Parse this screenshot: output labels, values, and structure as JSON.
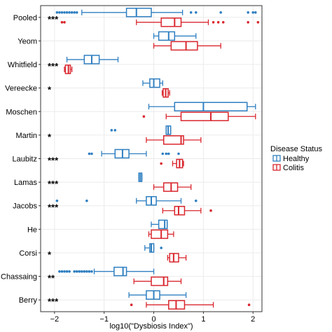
{
  "chart_data": {
    "type": "boxplot",
    "title": "",
    "xlabel": "log10(\"Dysbiosis Index\")",
    "ylabel": "",
    "xlim": [
      -2.28,
      2.18
    ],
    "xticks": [
      -2,
      -1,
      0,
      1,
      2
    ],
    "grid": true,
    "legend": {
      "title": "Disease Status",
      "placement": "right",
      "entries": [
        {
          "name": "Healthy",
          "color": "#2f7fc1"
        },
        {
          "name": "Colitis",
          "color": "#d9272e"
        }
      ]
    },
    "colors": {
      "Healthy": "#2f7fc1",
      "Colitis": "#d9272e",
      "panel_border": "#333333",
      "grid": "#ebebeb"
    },
    "categories": [
      "Pooled",
      "Yeom",
      "Whitfield",
      "Vereecke",
      "Moschen",
      "Martin",
      "Laubitz",
      "Lamas",
      "Jacobs",
      "He",
      "Corsi",
      "Chassaing",
      "Berry"
    ],
    "significance": [
      "***",
      "",
      "***",
      "*",
      "",
      "*",
      "***",
      "***",
      "***",
      "",
      "*",
      "**",
      "***"
    ],
    "series": [
      {
        "name": "Healthy",
        "boxes": [
          {
            "whislo": -1.45,
            "q1": -0.55,
            "med": -0.35,
            "q3": -0.05,
            "whishi": 0.58,
            "fliers": [
              -1.95,
              -1.9,
              -1.85,
              -1.8,
              -1.75,
              -1.7,
              -1.65,
              -1.6,
              -1.55,
              0.75,
              0.85,
              1.35,
              1.9,
              2.0,
              2.05
            ]
          },
          {
            "whislo": 0.0,
            "q1": 0.1,
            "med": 0.3,
            "q3": 0.42,
            "whishi": 0.85,
            "fliers": []
          },
          {
            "whislo": -1.75,
            "q1": -1.4,
            "med": -1.25,
            "q3": -1.1,
            "whishi": -0.72,
            "fliers": []
          },
          {
            "whislo": -0.22,
            "q1": -0.08,
            "med": 0.0,
            "q3": 0.12,
            "whishi": 0.18,
            "fliers": []
          },
          {
            "whislo": -0.1,
            "q1": 0.42,
            "med": 1.0,
            "q3": 1.88,
            "whishi": 2.05,
            "fliers": []
          },
          {
            "whislo": 0.25,
            "q1": 0.25,
            "med": 0.29,
            "q3": 0.34,
            "whishi": 0.34,
            "fliers": [
              -0.85,
              -0.78
            ]
          },
          {
            "whislo": -1.05,
            "q1": -0.78,
            "med": -0.63,
            "q3": -0.5,
            "whishi": -0.15,
            "fliers": [
              -1.3,
              -1.25,
              0.18,
              0.25,
              0.3,
              0.5
            ]
          },
          {
            "whislo": -0.3,
            "q1": -0.3,
            "med": -0.27,
            "q3": -0.24,
            "whishi": -0.24,
            "fliers": []
          },
          {
            "whislo": -0.35,
            "q1": -0.15,
            "med": -0.05,
            "q3": 0.05,
            "whishi": 0.55,
            "fliers": [
              -1.95,
              -1.35,
              0.85
            ]
          },
          {
            "whislo": -0.05,
            "q1": 0.1,
            "med": 0.22,
            "q3": 0.27,
            "whishi": 0.27,
            "fliers": []
          },
          {
            "whislo": -0.18,
            "q1": -0.08,
            "med": -0.05,
            "q3": 0.0,
            "whishi": 0.0,
            "fliers": [
              0.15
            ]
          },
          {
            "whislo": -1.2,
            "q1": -0.8,
            "med": -0.62,
            "q3": -0.55,
            "whishi": 0.0,
            "fliers": [
              -1.9,
              -1.85,
              -1.8,
              -1.75,
              -1.7,
              -1.6,
              -1.55,
              -1.5,
              -1.45,
              -1.4,
              -1.35,
              -1.3,
              -1.25
            ]
          },
          {
            "whislo": -0.5,
            "q1": -0.15,
            "med": 0.0,
            "q3": 0.12,
            "whishi": 0.65,
            "fliers": []
          }
        ]
      },
      {
        "name": "Colitis",
        "boxes": [
          {
            "whislo": -0.35,
            "q1": 0.15,
            "med": 0.42,
            "q3": 0.55,
            "whishi": 1.1,
            "fliers": [
              -1.85,
              -1.8,
              1.2,
              1.3,
              1.4,
              1.9,
              2.1
            ]
          },
          {
            "whislo": 0.0,
            "q1": 0.35,
            "med": 0.65,
            "q3": 0.88,
            "whishi": 1.35,
            "fliers": []
          },
          {
            "whislo": -1.8,
            "q1": -1.78,
            "med": -1.72,
            "q3": -1.68,
            "whishi": -1.65,
            "fliers": []
          },
          {
            "whislo": 0.17,
            "q1": 0.19,
            "med": 0.24,
            "q3": 0.29,
            "whishi": 0.32,
            "fliers": []
          },
          {
            "whislo": 0.25,
            "q1": 0.55,
            "med": 1.15,
            "q3": 1.5,
            "whishi": 2.05,
            "fliers": [
              -0.2
            ]
          },
          {
            "whislo": -0.15,
            "q1": 0.2,
            "med": 0.55,
            "q3": 0.6,
            "whishi": 0.95,
            "fliers": []
          },
          {
            "whislo": 0.38,
            "q1": 0.46,
            "med": 0.52,
            "q3": 0.58,
            "whishi": 0.6,
            "fliers": [
              0.15
            ]
          },
          {
            "whislo": 0.0,
            "q1": 0.2,
            "med": 0.35,
            "q3": 0.48,
            "whishi": 0.75,
            "fliers": []
          },
          {
            "whislo": 0.18,
            "q1": 0.42,
            "med": 0.5,
            "q3": 0.62,
            "whishi": 0.95,
            "fliers": [
              1.15
            ]
          },
          {
            "whislo": -0.1,
            "q1": -0.05,
            "med": 0.15,
            "q3": 0.28,
            "whishi": 0.4,
            "fliers": []
          },
          {
            "whislo": 0.28,
            "q1": 0.32,
            "med": 0.4,
            "q3": 0.5,
            "whishi": 0.65,
            "fliers": []
          },
          {
            "whislo": -0.4,
            "q1": -0.05,
            "med": 0.2,
            "q3": 0.28,
            "whishi": 0.55,
            "fliers": []
          },
          {
            "whislo": -0.15,
            "q1": 0.3,
            "med": 0.45,
            "q3": 0.62,
            "whishi": 1.2,
            "fliers": [
              -0.45,
              1.92
            ]
          }
        ]
      }
    ]
  }
}
